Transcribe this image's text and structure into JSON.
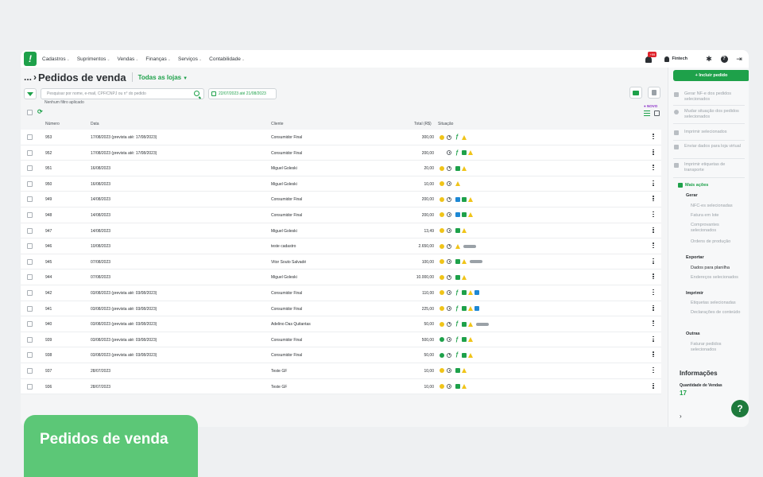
{
  "topbar": {
    "menu": [
      "Cadastros",
      "Suprimentos",
      "Vendas",
      "Finanças",
      "Serviços",
      "Contabilidade"
    ],
    "notification_badge": "+99",
    "user": "Fintech"
  },
  "header": {
    "crumb": "...",
    "title": "Pedidos de venda",
    "store": "Todas as lojas"
  },
  "filters": {
    "search_placeholder": "Pesquisar por nome, e-mail, CPF/CNPJ ou n° do pedido",
    "date_range": "22/07/2023 até 21/08/2023",
    "no_filter": "Nenhum filtro aplicado",
    "novo": "● NOVO"
  },
  "table": {
    "headers": {
      "numero": "Número",
      "data": "Data",
      "cliente": "Cliente",
      "total": "Total (R$)",
      "situacao": "Situação"
    },
    "rows": [
      {
        "numero": "953",
        "data": "17/08/2023 (prevista até: 17/08/2023)",
        "cliente": "Consumidor Final",
        "total": "300,00",
        "status": "yellow",
        "icons": [
          "fast",
          "warn"
        ]
      },
      {
        "numero": "952",
        "data": "17/08/2023 (prevista até: 17/08/2023)",
        "cliente": "Consumidor Final",
        "total": "200,00",
        "status": "none",
        "icons": [
          "fast",
          "green",
          "warn"
        ]
      },
      {
        "numero": "951",
        "data": "16/08/2023",
        "cliente": "Miguel Goleski",
        "total": "20,00",
        "status": "yellow",
        "icons": [
          "green",
          "warn"
        ]
      },
      {
        "numero": "950",
        "data": "16/08/2023",
        "cliente": "Miguel Goleski",
        "total": "10,00",
        "status": "yellow",
        "icons": [
          "warn"
        ]
      },
      {
        "numero": "949",
        "data": "14/08/2023",
        "cliente": "Consumidor Final",
        "total": "200,00",
        "status": "yellow",
        "icons": [
          "blue",
          "green",
          "warn"
        ]
      },
      {
        "numero": "948",
        "data": "14/08/2023",
        "cliente": "Consumidor Final",
        "total": "200,00",
        "status": "yellow",
        "icons": [
          "blue",
          "green",
          "warn"
        ]
      },
      {
        "numero": "947",
        "data": "14/08/2023",
        "cliente": "Miguel Goleski",
        "total": "13,49",
        "status": "yellow",
        "icons": [
          "green",
          "warn"
        ]
      },
      {
        "numero": "946",
        "data": "10/08/2023",
        "cliente": "teste cadastro",
        "total": "2.650,00",
        "status": "yellow",
        "icons": [
          "warn",
          "tag"
        ]
      },
      {
        "numero": "945",
        "data": "07/08/2023",
        "cliente": "Vitor Souto Salvadé",
        "total": "100,00",
        "status": "yellow",
        "icons": [
          "green",
          "warn",
          "tag"
        ]
      },
      {
        "numero": "944",
        "data": "07/08/2023",
        "cliente": "Miguel Goleski",
        "total": "10.000,00",
        "status": "yellow",
        "icons": [
          "green",
          "warn"
        ]
      },
      {
        "numero": "942",
        "data": "03/08/2023 (prevista até: 03/08/2023)",
        "cliente": "Consumidor Final",
        "total": "110,00",
        "status": "yellow",
        "icons": [
          "fast",
          "green",
          "warn",
          "blue"
        ]
      },
      {
        "numero": "941",
        "data": "03/08/2023 (prevista até: 03/08/2023)",
        "cliente": "Consumidor Final",
        "total": "225,00",
        "status": "yellow",
        "icons": [
          "fast",
          "green",
          "warn",
          "blue"
        ]
      },
      {
        "numero": "940",
        "data": "03/08/2023 (prevista até: 03/08/2023)",
        "cliente": "Adelino Das Quitantas",
        "total": "50,00",
        "status": "yellow",
        "icons": [
          "fast",
          "green",
          "warn",
          "tag"
        ]
      },
      {
        "numero": "939",
        "data": "03/08/2023 (prevista até: 03/08/2023)",
        "cliente": "Consumidor Final",
        "total": "500,00",
        "status": "green",
        "icons": [
          "fast",
          "green",
          "warn"
        ]
      },
      {
        "numero": "938",
        "data": "03/08/2023 (prevista até: 03/08/2023)",
        "cliente": "Consumidor Final",
        "total": "50,00",
        "status": "green",
        "icons": [
          "fast",
          "green",
          "warn"
        ]
      },
      {
        "numero": "937",
        "data": "28/07/2023",
        "cliente": "Teste GF",
        "total": "10,00",
        "status": "yellow",
        "icons": [
          "green",
          "warn"
        ]
      },
      {
        "numero": "936",
        "data": "28/07/2023",
        "cliente": "Teste GF",
        "total": "10,00",
        "status": "yellow",
        "icons": [
          "green",
          "warn"
        ]
      }
    ]
  },
  "sidebar": {
    "include": "+ Incluir pedido",
    "actions": [
      "Gerar NF-e dos pedidos selecionados",
      "Mudar situação dos pedidos selecionados",
      "Imprimir selecionados",
      "Enviar dados para loja virtual",
      "Imprimir etiquetas de transporte"
    ],
    "mais_acoes": "Mais ações",
    "gerar": "Gerar",
    "gerar_items": [
      "NFC-es selecionadas",
      "Fatura em lote",
      "Comprovantes selecionados",
      "Ordens de produção"
    ],
    "exportar": "Exportar",
    "exportar_items": [
      "Dados para planilha",
      "Endereços selecionados"
    ],
    "imprimir": "Imprimir",
    "imprimir_items": [
      "Etiquetas selecionadas",
      "Declarações de conteúdo"
    ],
    "outras": "Outras",
    "outras_items": [
      "Faturar pedidos selecionados"
    ],
    "info_title": "Informações",
    "info_label": "Quantidade de Vendas",
    "info_value": "17"
  },
  "caption": "Pedidos de venda",
  "colors": {
    "accent": "#1ea14a",
    "yellow": "#f0c419",
    "blue": "#1e88d4",
    "caption": "#5cc777"
  }
}
